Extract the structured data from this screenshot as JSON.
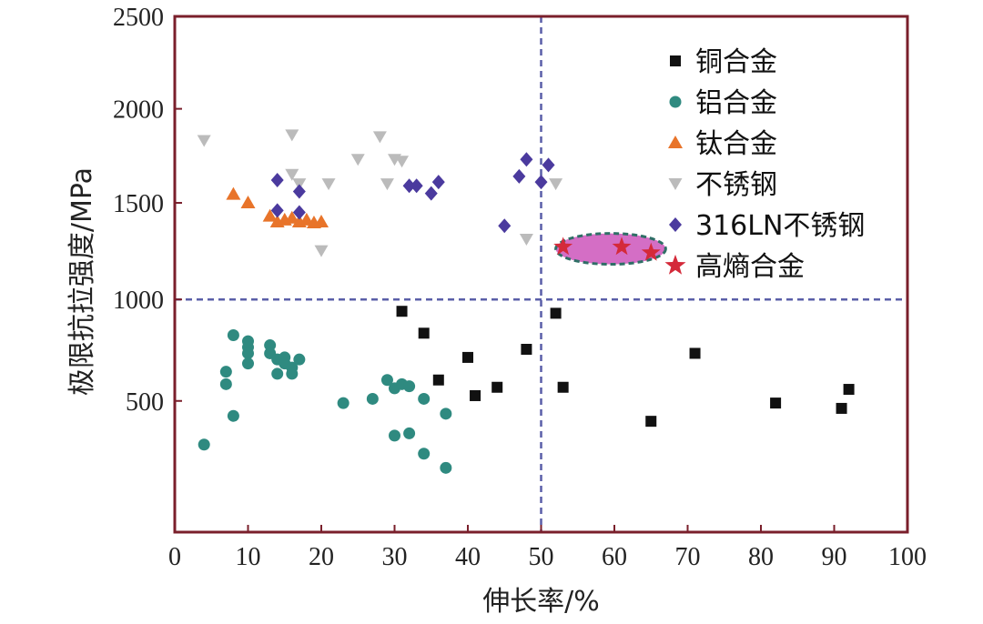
{
  "chart_data": {
    "type": "scatter",
    "title": "",
    "xlabel": "伸长率/%",
    "ylabel": "极限抗拉强度/MPa",
    "xlim": [
      0,
      100
    ],
    "ylim": [
      0,
      2500
    ],
    "x_ticks": [
      0,
      10,
      20,
      30,
      40,
      50,
      60,
      70,
      80,
      90,
      100
    ],
    "y_ticks": [
      500,
      1000,
      1500,
      2000,
      2500
    ],
    "grid": false,
    "legend_position": "top-right",
    "reference_lines": [
      {
        "orientation": "vertical",
        "value": 50,
        "style": "dashed"
      },
      {
        "orientation": "horizontal",
        "value": 1000,
        "style": "dashed"
      }
    ],
    "highlight_region": {
      "shape": "ellipse",
      "x_range": [
        52,
        67
      ],
      "y_range": [
        1180,
        1340
      ],
      "color": "#cc55bb"
    },
    "series": [
      {
        "name": "铜合金",
        "marker": "square",
        "color": "#111111",
        "points": [
          [
            31,
            940
          ],
          [
            34,
            830
          ],
          [
            36,
            600
          ],
          [
            41,
            525
          ],
          [
            44,
            565
          ],
          [
            48,
            750
          ],
          [
            40,
            710
          ],
          [
            52,
            930
          ],
          [
            53,
            565
          ],
          [
            65,
            405
          ],
          [
            71,
            730
          ],
          [
            82,
            490
          ],
          [
            91,
            465
          ],
          [
            92,
            555
          ]
        ]
      },
      {
        "name": "铝合金",
        "marker": "circle",
        "color": "#2f8a80",
        "points": [
          [
            4,
            300
          ],
          [
            7,
            640
          ],
          [
            7,
            580
          ],
          [
            8,
            820
          ],
          [
            8,
            430
          ],
          [
            10,
            790
          ],
          [
            10,
            760
          ],
          [
            10,
            730
          ],
          [
            10,
            680
          ],
          [
            13,
            770
          ],
          [
            13,
            730
          ],
          [
            14,
            700
          ],
          [
            14,
            630
          ],
          [
            15,
            710
          ],
          [
            15,
            680
          ],
          [
            16,
            660
          ],
          [
            16,
            630
          ],
          [
            17,
            700
          ],
          [
            23,
            490
          ],
          [
            27,
            510
          ],
          [
            29,
            600
          ],
          [
            30,
            560
          ],
          [
            30,
            340
          ],
          [
            31,
            580
          ],
          [
            32,
            570
          ],
          [
            32,
            350
          ],
          [
            34,
            510
          ],
          [
            34,
            260
          ],
          [
            37,
            440
          ],
          [
            37,
            200
          ]
        ]
      },
      {
        "name": "钛合金",
        "marker": "triangle-up",
        "color": "#e8742a",
        "points": [
          [
            8,
            1545
          ],
          [
            10,
            1500
          ],
          [
            13,
            1430
          ],
          [
            14,
            1400
          ],
          [
            15,
            1410
          ],
          [
            16,
            1420
          ],
          [
            17,
            1400
          ],
          [
            18,
            1410
          ],
          [
            19,
            1395
          ],
          [
            20,
            1400
          ]
        ]
      },
      {
        "name": "不锈钢",
        "marker": "triangle-down",
        "color": "#bbbbbb",
        "points": [
          [
            4,
            1830
          ],
          [
            16,
            1860
          ],
          [
            16,
            1650
          ],
          [
            17,
            1600
          ],
          [
            20,
            1250
          ],
          [
            21,
            1600
          ],
          [
            25,
            1730
          ],
          [
            28,
            1850
          ],
          [
            29,
            1600
          ],
          [
            30,
            1730
          ],
          [
            31,
            1720
          ],
          [
            48,
            1310
          ],
          [
            52,
            1600
          ]
        ]
      },
      {
        "name": "316LN不锈钢",
        "marker": "diamond",
        "color": "#4b3a9e",
        "points": [
          [
            14,
            1620
          ],
          [
            14,
            1460
          ],
          [
            17,
            1560
          ],
          [
            17,
            1450
          ],
          [
            32,
            1590
          ],
          [
            33,
            1590
          ],
          [
            35,
            1550
          ],
          [
            36,
            1610
          ],
          [
            45,
            1380
          ],
          [
            47,
            1640
          ],
          [
            48,
            1730
          ],
          [
            50,
            1610
          ],
          [
            51,
            1700
          ]
        ]
      },
      {
        "name": "高熵合金",
        "marker": "star",
        "color": "#d42a3a",
        "points": [
          [
            53,
            1270
          ],
          [
            61,
            1270
          ],
          [
            65,
            1240
          ]
        ]
      }
    ]
  }
}
